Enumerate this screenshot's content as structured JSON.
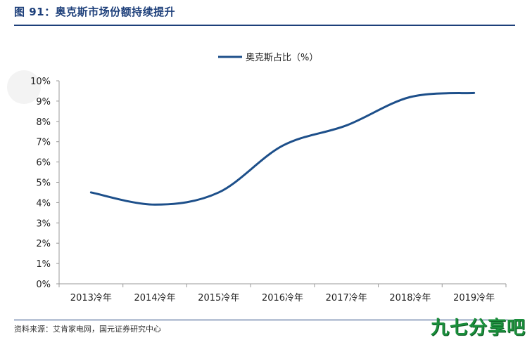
{
  "figure_title": "图 91：奥克斯市场份额持续提升",
  "source": "资料来源：艾肯家电网，国元证券研究中心",
  "watermark": "九七分享吧",
  "colors": {
    "series": "#1d4f8a",
    "title": "#1d3f7a",
    "axis": "#999999"
  },
  "chart_data": {
    "type": "line",
    "categories": [
      "2013冷年",
      "2014冷年",
      "2015冷年",
      "2016冷年",
      "2017冷年",
      "2018冷年",
      "2019冷年"
    ],
    "series": [
      {
        "name": "奥克斯占比（%）",
        "values": [
          4.5,
          3.9,
          4.5,
          6.8,
          7.8,
          9.2,
          9.4
        ]
      }
    ],
    "y_ticks": [
      "0%",
      "1%",
      "2%",
      "3%",
      "4%",
      "5%",
      "6%",
      "7%",
      "8%",
      "9%",
      "10%"
    ],
    "ylim": [
      0,
      10
    ],
    "legend": "top-center",
    "grid": false
  }
}
